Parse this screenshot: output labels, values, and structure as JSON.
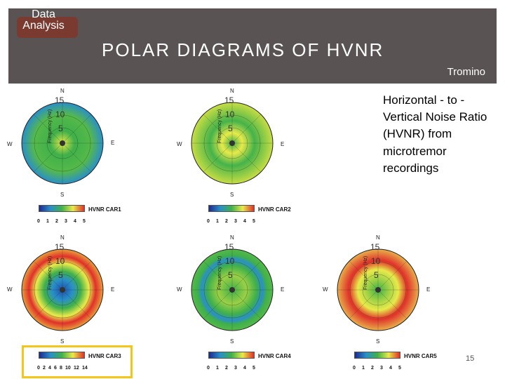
{
  "header": {
    "tag": "Data Analysis",
    "title": "POLAR DIAGRAMS OF HVNR",
    "subtitle": "Tromino"
  },
  "body_text": "Horizontal - to - Vertical Noise Ratio (HVNR) from microtremor recordings",
  "slide_number": "15",
  "compass": {
    "n": "N",
    "s": "S",
    "e": "E",
    "w": "W"
  },
  "ring_labels": [
    "15",
    "10",
    "5"
  ],
  "axis_label": "Frequency (Hz)",
  "panels": [
    {
      "name": "HVNR CAR1",
      "ticks": [
        "0",
        "1",
        "2",
        "3",
        "4",
        "5"
      ],
      "dominant": "green",
      "outer": "blue"
    },
    {
      "name": "HVNR CAR2",
      "ticks": [
        "0",
        "1",
        "2",
        "3",
        "4",
        "5"
      ],
      "dominant": "green",
      "outer": "yellow"
    },
    {
      "name": "HVNR CAR3",
      "ticks": [
        "0",
        "2",
        "4",
        "6",
        "8",
        "10",
        "12",
        "14"
      ],
      "dominant": "red",
      "outer": "red",
      "highlighted": true
    },
    {
      "name": "HVNR CAR4",
      "ticks": [
        "0",
        "1",
        "2",
        "3",
        "4",
        "5"
      ],
      "dominant": "green",
      "outer": "green"
    },
    {
      "name": "HVNR CAR5",
      "ticks": [
        "0",
        "1",
        "2",
        "3",
        "4",
        "5"
      ],
      "dominant": "red",
      "outer": "orange"
    }
  ],
  "colors": {
    "header_bg": "#595353",
    "tag_bg": "#7a3a30",
    "highlight": "#f5c518"
  }
}
